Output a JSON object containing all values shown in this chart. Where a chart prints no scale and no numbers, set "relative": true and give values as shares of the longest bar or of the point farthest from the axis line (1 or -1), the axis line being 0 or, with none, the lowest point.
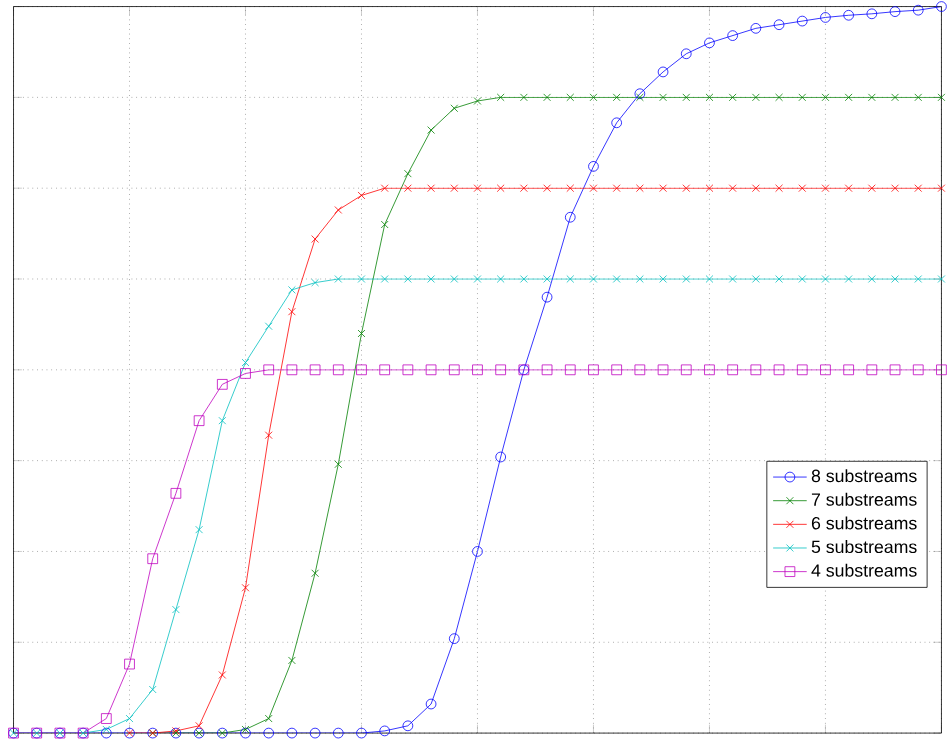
{
  "chart_data": {
    "type": "line",
    "relative": true,
    "grid": true,
    "legend": "bottom right",
    "categories": [
      null,
      null,
      null,
      null,
      null,
      null,
      null,
      null,
      null,
      null,
      null,
      null,
      null,
      null,
      null,
      null,
      null,
      null,
      null,
      null,
      null,
      null,
      null,
      null,
      null,
      null,
      null,
      null,
      null,
      null,
      null,
      null,
      null,
      null,
      null,
      null,
      null,
      null,
      null,
      null,
      null
    ],
    "series": [
      {
        "name": "8 substreams",
        "color": "#0000ff",
        "marker": "circle",
        "values": [
          0,
          0,
          0,
          0,
          0,
          0,
          0,
          0,
          0,
          0,
          0,
          0,
          0,
          0,
          0,
          0,
          0.003,
          0.01,
          0.04,
          0.13,
          0.25,
          0.38,
          0.5,
          0.6,
          0.71,
          0.78,
          0.84,
          0.88,
          0.91,
          0.935,
          0.95,
          0.96,
          0.97,
          0.975,
          0.98,
          0.985,
          0.988,
          0.99,
          0.993,
          0.995,
          1.0
        ]
      },
      {
        "name": "7 substreams",
        "color": "#008000",
        "marker": "cross",
        "values": [
          null,
          null,
          null,
          null,
          null,
          null,
          0,
          0,
          0,
          0,
          0.005,
          0.02,
          0.1,
          0.22,
          0.37,
          0.55,
          0.7,
          0.77,
          0.83,
          0.86,
          0.87,
          0.875,
          0.875,
          0.875,
          0.875,
          0.875,
          0.875,
          0.875,
          0.875,
          0.875,
          0.875,
          0.875,
          0.875,
          0.875,
          0.875,
          0.875,
          0.875,
          0.875,
          0.875,
          0.875,
          0.875
        ]
      },
      {
        "name": "6 substreams",
        "color": "#ff0000",
        "marker": "cross",
        "values": [
          null,
          null,
          null,
          null,
          null,
          0,
          0,
          0.003,
          0.01,
          0.08,
          0.2,
          0.41,
          0.58,
          0.68,
          0.72,
          0.74,
          0.75,
          0.75,
          0.75,
          0.75,
          0.75,
          0.75,
          0.75,
          0.75,
          0.75,
          0.75,
          0.75,
          0.75,
          0.75,
          0.75,
          0.75,
          0.75,
          0.75,
          0.75,
          0.75,
          0.75,
          0.75,
          0.75,
          0.75,
          0.75,
          0.75
        ]
      },
      {
        "name": "5 substreams",
        "color": "#00bfbf",
        "marker": "cross",
        "values": [
          0,
          0,
          0,
          0,
          0.005,
          0.02,
          0.06,
          0.17,
          0.28,
          0.43,
          0.51,
          0.56,
          0.61,
          0.62,
          0.625,
          0.625,
          0.625,
          0.625,
          0.625,
          0.625,
          0.625,
          0.625,
          0.625,
          0.625,
          0.625,
          0.625,
          0.625,
          0.625,
          0.625,
          0.625,
          0.625,
          0.625,
          0.625,
          0.625,
          0.625,
          0.625,
          0.625,
          0.625,
          0.625,
          0.625,
          0.625
        ]
      },
      {
        "name": "4 substreams",
        "color": "#bf00bf",
        "marker": "square",
        "values": [
          0,
          0,
          0,
          0,
          0.02,
          0.095,
          0.24,
          0.33,
          0.43,
          0.48,
          0.495,
          0.5,
          0.5,
          0.5,
          0.5,
          0.5,
          0.5,
          0.5,
          0.5,
          0.5,
          0.5,
          0.5,
          0.5,
          0.5,
          0.5,
          0.5,
          0.5,
          0.5,
          0.5,
          0.5,
          0.5,
          0.5,
          0.5,
          0.5,
          0.5,
          0.5,
          0.5,
          0.5,
          0.5,
          0.5,
          0.5
        ]
      }
    ]
  }
}
